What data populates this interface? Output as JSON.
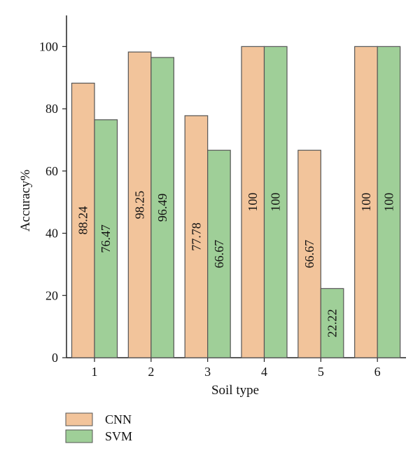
{
  "chart_data": {
    "type": "bar",
    "categories": [
      "1",
      "2",
      "3",
      "4",
      "5",
      "6"
    ],
    "series": [
      {
        "name": "CNN",
        "values": [
          88.24,
          98.25,
          77.78,
          100,
          66.67,
          100
        ],
        "color": "#f2c49b"
      },
      {
        "name": "SVM",
        "values": [
          76.47,
          96.49,
          66.67,
          100,
          22.22,
          100
        ],
        "color": "#9fcf98"
      }
    ],
    "data_labels": [
      [
        "88.24",
        "98.25",
        "77.78",
        "100",
        "66.67",
        "100"
      ],
      [
        "76.47",
        "96.49",
        "66.67",
        "100",
        "22.22",
        "100"
      ]
    ],
    "xlabel": "Soil type",
    "ylabel": "Accuracy%",
    "ylim": [
      0,
      110
    ],
    "yticks": [
      0,
      20,
      40,
      60,
      80,
      100
    ],
    "grid": false,
    "legend_position": "bottom-left",
    "bar_edge_color": "#555555"
  }
}
